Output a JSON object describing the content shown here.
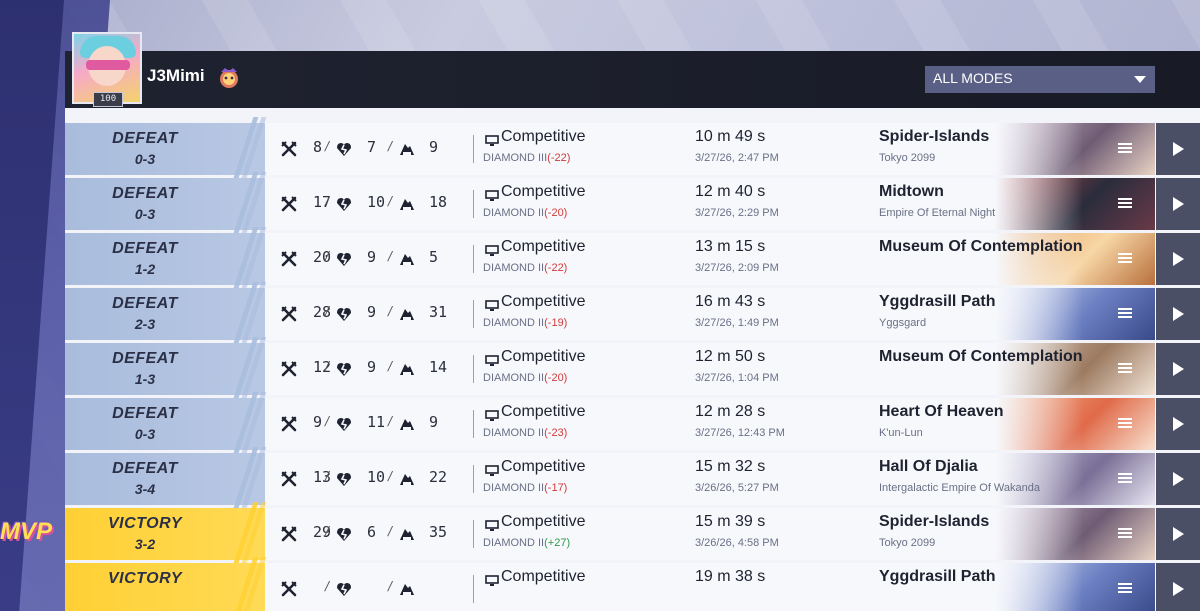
{
  "player": {
    "name": "J3Mimi",
    "level": "100"
  },
  "filter": {
    "selected": "ALL MODES"
  },
  "mvp_label": "MVP",
  "matches": [
    {
      "result": "DEFEAT",
      "score": "0-3",
      "kills": "8",
      "deaths": "7",
      "assists": "9",
      "mode": "Competitive",
      "rank": "DIAMOND III",
      "rank_delta": "(-22)",
      "delta_sign": "neg",
      "duration": "10 m 49 s",
      "datetime": "3/27/26, 2:47 PM",
      "map": "Spider-Islands",
      "map_sub": "Tokyo 2099",
      "art_colors": [
        "#c9b7c8",
        "#6f5c74",
        "#e8d3c4"
      ]
    },
    {
      "result": "DEFEAT",
      "score": "0-3",
      "kills": "17",
      "deaths": "10",
      "assists": "18",
      "mode": "Competitive",
      "rank": "DIAMOND II",
      "rank_delta": "(-20)",
      "delta_sign": "neg",
      "duration": "12 m 40 s",
      "datetime": "3/27/26, 2:29 PM",
      "map": "Midtown",
      "map_sub": "Empire Of Eternal Night",
      "art_colors": [
        "#b04848",
        "#2a2c3c",
        "#6a3a48"
      ]
    },
    {
      "result": "DEFEAT",
      "score": "1-2",
      "kills": "20",
      "deaths": "9",
      "assists": "5",
      "mode": "Competitive",
      "rank": "DIAMOND II",
      "rank_delta": "(-22)",
      "delta_sign": "neg",
      "duration": "13 m 15 s",
      "datetime": "3/27/26, 2:09 PM",
      "map": "Museum Of Contemplation",
      "map_sub": "",
      "art_colors": [
        "#e8a25a",
        "#f7d6a6",
        "#b8703c"
      ]
    },
    {
      "result": "DEFEAT",
      "score": "2-3",
      "kills": "28",
      "deaths": "9",
      "assists": "31",
      "mode": "Competitive",
      "rank": "DIAMOND II",
      "rank_delta": "(-19)",
      "delta_sign": "neg",
      "duration": "16 m 43 s",
      "datetime": "3/27/26, 1:49 PM",
      "map": "Yggdrasill Path",
      "map_sub": "Yggsgard",
      "art_colors": [
        "#d9e2f6",
        "#6b7fc2",
        "#3a4a8a"
      ]
    },
    {
      "result": "DEFEAT",
      "score": "1-3",
      "kills": "12",
      "deaths": "9",
      "assists": "14",
      "mode": "Competitive",
      "rank": "DIAMOND II",
      "rank_delta": "(-20)",
      "delta_sign": "neg",
      "duration": "12 m 50 s",
      "datetime": "3/27/26, 1:04 PM",
      "map": "Museum Of Contemplation",
      "map_sub": "",
      "art_colors": [
        "#d8c6b6",
        "#9c7a60",
        "#f2e4d6"
      ]
    },
    {
      "result": "DEFEAT",
      "score": "0-3",
      "kills": "9",
      "deaths": "11",
      "assists": "9",
      "mode": "Competitive",
      "rank": "DIAMOND II",
      "rank_delta": "(-23)",
      "delta_sign": "neg",
      "duration": "12 m 28 s",
      "datetime": "3/27/26, 12:43 PM",
      "map": "Heart Of Heaven",
      "map_sub": "K'un-Lun",
      "art_colors": [
        "#f3b38c",
        "#e06a4a",
        "#f8e2d0"
      ]
    },
    {
      "result": "DEFEAT",
      "score": "3-4",
      "kills": "13",
      "deaths": "10",
      "assists": "22",
      "mode": "Competitive",
      "rank": "DIAMOND II",
      "rank_delta": "(-17)",
      "delta_sign": "neg",
      "duration": "15 m 32 s",
      "datetime": "3/26/26, 5:27 PM",
      "map": "Hall Of Djalia",
      "map_sub": "Intergalactic Empire Of Wakanda",
      "art_colors": [
        "#c8c4dc",
        "#7a6f96",
        "#e9e6f2"
      ]
    },
    {
      "result": "VICTORY",
      "score": "3-2",
      "kills": "29",
      "deaths": "6",
      "assists": "35",
      "mode": "Competitive",
      "rank": "DIAMOND II",
      "rank_delta": "(+27)",
      "delta_sign": "pos",
      "duration": "15 m 39 s",
      "datetime": "3/26/26, 4:58 PM",
      "map": "Spider-Islands",
      "map_sub": "Tokyo 2099",
      "art_colors": [
        "#c9b7c8",
        "#6f5c74",
        "#e8d3c4"
      ]
    },
    {
      "result": "VICTORY",
      "score": "",
      "kills": "",
      "deaths": "",
      "assists": "",
      "mode": "Competitive",
      "rank": "",
      "rank_delta": "",
      "delta_sign": "pos",
      "duration": "19 m 38 s",
      "datetime": "",
      "map": "Yggdrasill Path",
      "map_sub": "",
      "art_colors": [
        "#d9e2f6",
        "#6b7fc2",
        "#3a4a8a"
      ]
    }
  ]
}
